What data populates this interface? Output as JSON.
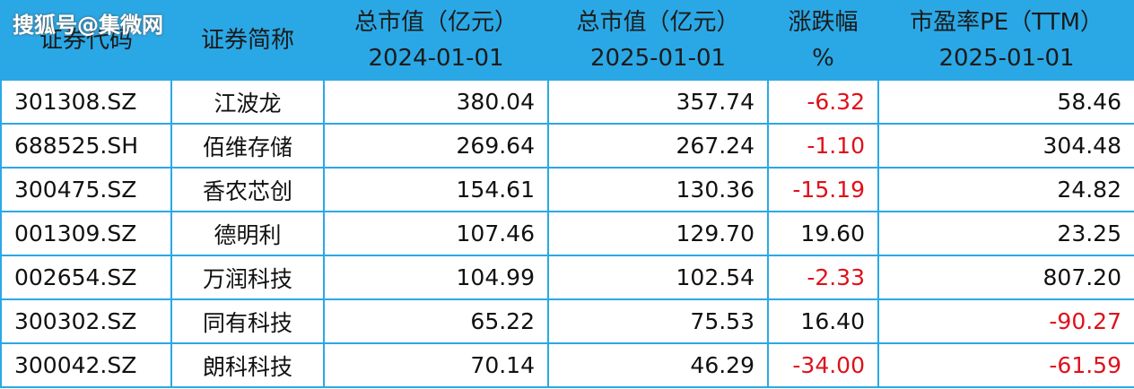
{
  "watermark": "搜狐号@集微网",
  "table": {
    "columns": [
      [
        "证券代码"
      ],
      [
        "证券简称"
      ],
      [
        "总市值（亿元）",
        "2024-01-01"
      ],
      [
        "总市值（亿元）",
        "2025-01-01"
      ],
      [
        "涨跌幅",
        "%"
      ],
      [
        "市盈率PE（TTM）",
        "2025-01-01"
      ]
    ],
    "rows": [
      [
        "301308.SZ",
        "江波龙",
        "380.04",
        "357.74",
        "-6.32",
        "58.46"
      ],
      [
        "688525.SH",
        "佰维存储",
        "269.64",
        "267.24",
        "-1.10",
        "304.48"
      ],
      [
        "300475.SZ",
        "香农芯创",
        "154.61",
        "130.36",
        "-15.19",
        "24.82"
      ],
      [
        "001309.SZ",
        "德明利",
        "107.46",
        "129.70",
        "19.60",
        "23.25"
      ],
      [
        "002654.SZ",
        "万润科技",
        "104.99",
        "102.54",
        "-2.33",
        "807.20"
      ],
      [
        "300302.SZ",
        "同有科技",
        "65.22",
        "75.53",
        "16.40",
        "-90.27"
      ],
      [
        "300042.SZ",
        "朗科科技",
        "70.14",
        "46.29",
        "-34.00",
        "-61.59"
      ]
    ]
  }
}
